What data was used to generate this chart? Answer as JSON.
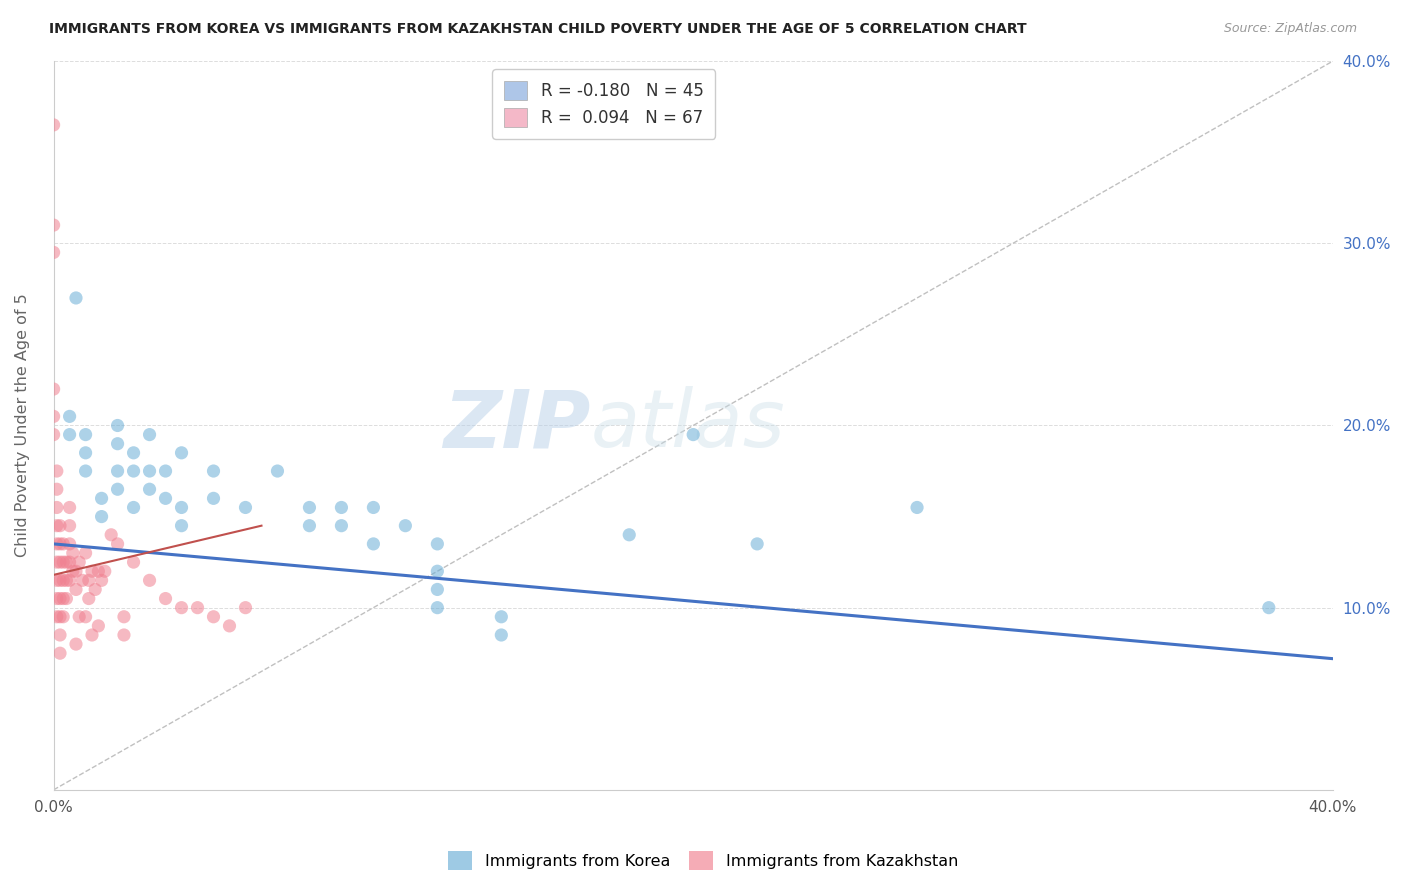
{
  "title": "IMMIGRANTS FROM KOREA VS IMMIGRANTS FROM KAZAKHSTAN CHILD POVERTY UNDER THE AGE OF 5 CORRELATION CHART",
  "source": "Source: ZipAtlas.com",
  "ylabel": "Child Poverty Under the Age of 5",
  "xlim": [
    0.0,
    0.4
  ],
  "ylim": [
    0.0,
    0.4
  ],
  "xticks": [
    0.0,
    0.1,
    0.2,
    0.3,
    0.4
  ],
  "yticks": [
    0.0,
    0.1,
    0.2,
    0.3,
    0.4
  ],
  "xticklabels_show": [
    "0.0%",
    "",
    "",
    "",
    "40.0%"
  ],
  "yticklabels_right": [
    "",
    "10.0%",
    "20.0%",
    "30.0%",
    "40.0%"
  ],
  "watermark": "ZIPatlas",
  "legend_label_korea": "R = -0.180   N = 45",
  "legend_label_kaz": "R =  0.094   N = 67",
  "legend_color_korea": "#aec6e8",
  "legend_color_kaz": "#f4b8c8",
  "korea_color": "#6aaed6",
  "kazakhstan_color": "#f08090",
  "korea_trend_color": "#4472c4",
  "kaz_trend_color": "#c0504d",
  "bottom_legend_korea": "Immigrants from Korea",
  "bottom_legend_kaz": "Immigrants from Kazakhstan",
  "korea_scatter": [
    [
      0.005,
      0.205
    ],
    [
      0.005,
      0.195
    ],
    [
      0.007,
      0.27
    ],
    [
      0.01,
      0.195
    ],
    [
      0.01,
      0.185
    ],
    [
      0.01,
      0.175
    ],
    [
      0.015,
      0.16
    ],
    [
      0.015,
      0.15
    ],
    [
      0.02,
      0.2
    ],
    [
      0.02,
      0.19
    ],
    [
      0.02,
      0.175
    ],
    [
      0.02,
      0.165
    ],
    [
      0.025,
      0.185
    ],
    [
      0.025,
      0.175
    ],
    [
      0.025,
      0.155
    ],
    [
      0.03,
      0.195
    ],
    [
      0.03,
      0.175
    ],
    [
      0.03,
      0.165
    ],
    [
      0.035,
      0.175
    ],
    [
      0.035,
      0.16
    ],
    [
      0.04,
      0.185
    ],
    [
      0.04,
      0.155
    ],
    [
      0.04,
      0.145
    ],
    [
      0.05,
      0.175
    ],
    [
      0.05,
      0.16
    ],
    [
      0.06,
      0.155
    ],
    [
      0.07,
      0.175
    ],
    [
      0.08,
      0.155
    ],
    [
      0.08,
      0.145
    ],
    [
      0.09,
      0.155
    ],
    [
      0.09,
      0.145
    ],
    [
      0.1,
      0.135
    ],
    [
      0.1,
      0.155
    ],
    [
      0.11,
      0.145
    ],
    [
      0.12,
      0.135
    ],
    [
      0.12,
      0.12
    ],
    [
      0.12,
      0.11
    ],
    [
      0.12,
      0.1
    ],
    [
      0.14,
      0.095
    ],
    [
      0.14,
      0.085
    ],
    [
      0.18,
      0.14
    ],
    [
      0.2,
      0.195
    ],
    [
      0.22,
      0.135
    ],
    [
      0.27,
      0.155
    ],
    [
      0.38,
      0.1
    ]
  ],
  "kazakhstan_scatter": [
    [
      0.0,
      0.365
    ],
    [
      0.0,
      0.31
    ],
    [
      0.0,
      0.295
    ],
    [
      0.0,
      0.22
    ],
    [
      0.0,
      0.205
    ],
    [
      0.0,
      0.195
    ],
    [
      0.001,
      0.175
    ],
    [
      0.001,
      0.165
    ],
    [
      0.001,
      0.155
    ],
    [
      0.001,
      0.145
    ],
    [
      0.001,
      0.135
    ],
    [
      0.001,
      0.125
    ],
    [
      0.001,
      0.115
    ],
    [
      0.001,
      0.105
    ],
    [
      0.001,
      0.095
    ],
    [
      0.002,
      0.145
    ],
    [
      0.002,
      0.135
    ],
    [
      0.002,
      0.125
    ],
    [
      0.002,
      0.115
    ],
    [
      0.002,
      0.105
    ],
    [
      0.002,
      0.095
    ],
    [
      0.002,
      0.085
    ],
    [
      0.002,
      0.075
    ],
    [
      0.003,
      0.135
    ],
    [
      0.003,
      0.125
    ],
    [
      0.003,
      0.115
    ],
    [
      0.003,
      0.105
    ],
    [
      0.003,
      0.095
    ],
    [
      0.004,
      0.125
    ],
    [
      0.004,
      0.115
    ],
    [
      0.004,
      0.105
    ],
    [
      0.005,
      0.155
    ],
    [
      0.005,
      0.145
    ],
    [
      0.005,
      0.135
    ],
    [
      0.005,
      0.125
    ],
    [
      0.005,
      0.115
    ],
    [
      0.006,
      0.13
    ],
    [
      0.006,
      0.12
    ],
    [
      0.007,
      0.12
    ],
    [
      0.007,
      0.11
    ],
    [
      0.008,
      0.125
    ],
    [
      0.009,
      0.115
    ],
    [
      0.01,
      0.13
    ],
    [
      0.011,
      0.115
    ],
    [
      0.011,
      0.105
    ],
    [
      0.012,
      0.12
    ],
    [
      0.013,
      0.11
    ],
    [
      0.014,
      0.12
    ],
    [
      0.015,
      0.115
    ],
    [
      0.016,
      0.12
    ],
    [
      0.018,
      0.14
    ],
    [
      0.02,
      0.135
    ],
    [
      0.022,
      0.095
    ],
    [
      0.022,
      0.085
    ],
    [
      0.025,
      0.125
    ],
    [
      0.03,
      0.115
    ],
    [
      0.035,
      0.105
    ],
    [
      0.04,
      0.1
    ],
    [
      0.045,
      0.1
    ],
    [
      0.05,
      0.095
    ],
    [
      0.055,
      0.09
    ],
    [
      0.06,
      0.1
    ],
    [
      0.008,
      0.095
    ],
    [
      0.01,
      0.095
    ],
    [
      0.012,
      0.085
    ],
    [
      0.014,
      0.09
    ],
    [
      0.007,
      0.08
    ]
  ],
  "kaz_trend_x": [
    0.0,
    0.065
  ],
  "korea_trend_x": [
    0.0,
    0.4
  ],
  "korea_trend_y_start": 0.135,
  "korea_trend_y_end": 0.072,
  "kaz_trend_y_start": 0.118,
  "kaz_trend_y_end": 0.145
}
